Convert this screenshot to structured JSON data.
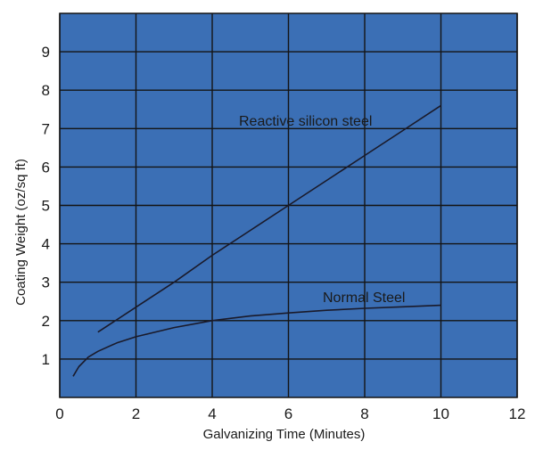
{
  "chart_data": {
    "type": "line",
    "title": "",
    "xlabel": "Galvanizing Time (Minutes)",
    "ylabel": "Coating Weight (oz/sq ft)",
    "xlim": [
      0,
      12
    ],
    "ylim": [
      0,
      10
    ],
    "x_ticks": [
      "0",
      "2",
      "4",
      "6",
      "8",
      "10",
      "12"
    ],
    "y_ticks": [
      "1",
      "2",
      "3",
      "4",
      "5",
      "6",
      "7",
      "8",
      "9"
    ],
    "grid": true,
    "legend": "none",
    "colors": {
      "plot_background": "#3b6fb5",
      "grid": "#141414",
      "line": "#1a1a2a"
    },
    "series": [
      {
        "name": "Reactive silicon steel",
        "x": [
          1.0,
          2.0,
          3.0,
          4.0,
          5.0,
          6.0,
          7.0,
          8.0,
          9.0,
          10.0
        ],
        "y": [
          1.7,
          2.35,
          3.0,
          3.7,
          4.35,
          5.0,
          5.65,
          6.3,
          6.95,
          7.6
        ]
      },
      {
        "name": "Normal Steel",
        "x": [
          0.35,
          0.5,
          0.75,
          1.0,
          1.5,
          2.0,
          3.0,
          4.0,
          5.0,
          6.0,
          7.0,
          8.0,
          9.0,
          10.0
        ],
        "y": [
          0.55,
          0.8,
          1.05,
          1.2,
          1.42,
          1.58,
          1.82,
          2.0,
          2.12,
          2.2,
          2.27,
          2.32,
          2.36,
          2.4
        ]
      }
    ]
  }
}
